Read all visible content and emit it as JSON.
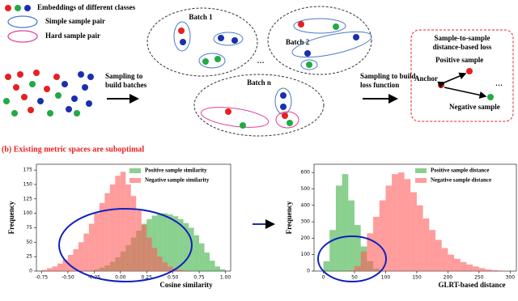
{
  "diagram": {
    "legend": [
      "Embeddings of different classes",
      "Simple sample pair",
      "Hard sample pair"
    ],
    "step1": [
      "Sampling to",
      "build batches"
    ],
    "batches": [
      "Batch 1",
      "Batch 2",
      "Batch n"
    ],
    "ellipsis": "…",
    "step2": [
      "Sampling to build",
      "loss function"
    ],
    "loss": {
      "title": [
        "Sample-to-sample",
        "distance-based loss"
      ],
      "positive": "Positive sample",
      "anchor": "Anchor",
      "negative": "Negative sample",
      "ellipsis": "…"
    }
  },
  "section_title": "(b) Existing metric spaces are suboptimal",
  "chart_data": [
    {
      "type": "histogram",
      "xlabel": "Cosine similarity",
      "ylabel": "Frequency",
      "legend": "upper right",
      "bins": [
        -0.75,
        -0.7,
        -0.65,
        -0.6,
        -0.55,
        -0.5,
        -0.45,
        -0.4,
        -0.35,
        -0.3,
        -0.25,
        -0.2,
        -0.15,
        -0.1,
        -0.05,
        0,
        0.05,
        0.1,
        0.15,
        0.2,
        0.25,
        0.3,
        0.35,
        0.4,
        0.45,
        0.5,
        0.55,
        0.6,
        0.65,
        0.7,
        0.75,
        0.8,
        0.85,
        0.9,
        0.95,
        1.0
      ],
      "series": [
        {
          "name": "Positive sample similarity",
          "color": "#3cb043",
          "values": [
            0,
            0,
            0,
            0,
            0,
            0,
            0,
            0,
            0,
            1,
            3,
            6,
            10,
            16,
            24,
            34,
            45,
            58,
            70,
            82,
            90,
            96,
            100,
            100,
            98,
            95,
            90,
            83,
            75,
            62,
            48,
            32,
            18,
            8,
            3
          ]
        },
        {
          "name": "Negative sample similarity",
          "color": "#ff5a5a",
          "values": [
            2,
            5,
            8,
            13,
            20,
            28,
            38,
            50,
            65,
            82,
            100,
            118,
            135,
            150,
            165,
            172,
            150,
            130,
            105,
            80,
            58,
            40,
            25,
            15,
            8,
            4,
            2,
            1,
            0,
            0,
            0,
            0,
            0,
            0,
            0
          ]
        }
      ],
      "xlim": [
        -0.8,
        1.05
      ],
      "ylim": [
        0,
        185
      ],
      "xticks": [
        {
          "value": -0.75,
          "label": "-0.75"
        },
        {
          "value": -0.5,
          "label": "-0.50"
        },
        -0.25,
        {
          "value": 0,
          "label": "0.00"
        },
        0.25,
        {
          "value": 0.5,
          "label": "0.50"
        },
        0.75,
        {
          "value": 1,
          "label": "1.00"
        }
      ],
      "yticks": [
        0,
        25,
        50,
        75,
        100,
        125,
        150,
        175
      ]
    },
    {
      "type": "histogram",
      "xlabel": "GLRT-based distance",
      "ylabel": "Frequency",
      "legend": "upper right",
      "bins": [
        0,
        10,
        20,
        30,
        40,
        50,
        60,
        70,
        80,
        90,
        100,
        110,
        120,
        130,
        140,
        150,
        160,
        170,
        180,
        190,
        200,
        210,
        220,
        230,
        240,
        250,
        260,
        270,
        280,
        290,
        300
      ],
      "series": [
        {
          "name": "Positive sample distance",
          "color": "#3cb043",
          "values": [
            60,
            250,
            520,
            590,
            430,
            280,
            150,
            60,
            15,
            0,
            0,
            0,
            0,
            0,
            0,
            0,
            0,
            0,
            0,
            0,
            0,
            0,
            0,
            0,
            0,
            0,
            0,
            0,
            0,
            0
          ]
        },
        {
          "name": "Negative sample distance",
          "color": "#ff5a5a",
          "values": [
            0,
            0,
            0,
            0,
            5,
            30,
            120,
            230,
            330,
            430,
            520,
            590,
            600,
            560,
            480,
            400,
            320,
            250,
            190,
            140,
            100,
            75,
            55,
            40,
            28,
            18,
            10,
            6,
            3,
            1
          ]
        }
      ],
      "xlim": [
        -15,
        310
      ],
      "ylim": [
        0,
        650
      ],
      "xticks": [
        0,
        50,
        100,
        150,
        200,
        250,
        300
      ],
      "yticks": [
        0,
        100,
        200,
        300,
        400,
        500,
        600
      ]
    }
  ]
}
